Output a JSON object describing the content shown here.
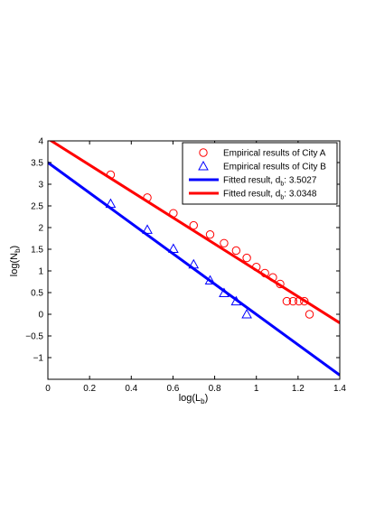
{
  "chart_data": {
    "type": "scatter",
    "xlabel": "log(L",
    "xlabel_sub": "b",
    "xlabel_end": ")",
    "ylabel": "log(N",
    "ylabel_sub": "b",
    "ylabel_end": ")",
    "xlim": [
      0,
      1.4
    ],
    "ylim": [
      -1.5,
      4
    ],
    "xticks": [
      0,
      0.2,
      0.4,
      0.6,
      0.8,
      1,
      1.2,
      1.4
    ],
    "xtick_labels": [
      "0",
      "0.2",
      "0.4",
      "0.6",
      "0.8",
      "1",
      "1.2",
      "1.4"
    ],
    "yticks": [
      -1,
      -0.5,
      0,
      0.5,
      1,
      1.5,
      2,
      2.5,
      3,
      3.5,
      4
    ],
    "ytick_labels": [
      "−1",
      "−0.5",
      "0",
      "0.5",
      "1",
      "1.5",
      "2",
      "2.5",
      "3",
      "3.5",
      "4"
    ],
    "grid": false,
    "legend_position": "top-right",
    "series": [
      {
        "name": "Empirical results of City A",
        "marker": "circle",
        "color": "#ff0000",
        "x": [
          0.301,
          0.477,
          0.602,
          0.699,
          0.778,
          0.845,
          0.903,
          0.954,
          1.0,
          1.041,
          1.079,
          1.114,
          1.146,
          1.176,
          1.204,
          1.23,
          1.255
        ],
        "y": [
          3.22,
          2.69,
          2.33,
          2.05,
          1.84,
          1.64,
          1.47,
          1.3,
          1.09,
          0.95,
          0.85,
          0.7,
          0.3,
          0.3,
          0.3,
          0.3,
          0.0
        ]
      },
      {
        "name": "Empirical results of City B",
        "marker": "triangle",
        "color": "#0000ff",
        "x": [
          0.301,
          0.477,
          0.602,
          0.699,
          0.778,
          0.845,
          0.903,
          0.954
        ],
        "y": [
          2.55,
          1.95,
          1.51,
          1.15,
          0.78,
          0.49,
          0.3,
          0.0
        ]
      },
      {
        "name": "Fitted result, d",
        "name_sub": "b",
        "name_end": ": 3.5027",
        "type": "line",
        "color": "#0000ff",
        "x": [
          0,
          1.4
        ],
        "y": [
          3.5,
          -1.404
        ]
      },
      {
        "name": "Fitted result, d",
        "name_sub": "b",
        "name_end": ": 3.0348",
        "type": "line",
        "color": "#ff0000",
        "x": [
          0,
          1.4
        ],
        "y": [
          4.05,
          -0.199
        ]
      }
    ]
  }
}
